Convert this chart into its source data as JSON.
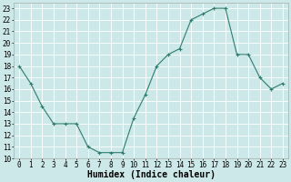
{
  "x": [
    0,
    1,
    2,
    3,
    4,
    5,
    6,
    7,
    8,
    9,
    10,
    11,
    12,
    13,
    14,
    15,
    16,
    17,
    18,
    19,
    20,
    21,
    22,
    23
  ],
  "y": [
    18.0,
    16.5,
    14.5,
    13.0,
    13.0,
    13.0,
    11.0,
    10.5,
    10.5,
    10.5,
    13.5,
    15.5,
    18.0,
    19.0,
    19.5,
    22.0,
    22.5,
    23.0,
    23.0,
    19.0,
    19.0,
    17.0,
    16.0,
    16.5
  ],
  "xlabel": "Humidex (Indice chaleur)",
  "xlim": [
    -0.5,
    23.5
  ],
  "ylim": [
    10,
    23.5
  ],
  "yticks": [
    10,
    11,
    12,
    13,
    14,
    15,
    16,
    17,
    18,
    19,
    20,
    21,
    22,
    23
  ],
  "xticks": [
    0,
    1,
    2,
    3,
    4,
    5,
    6,
    7,
    8,
    9,
    10,
    11,
    12,
    13,
    14,
    15,
    16,
    17,
    18,
    19,
    20,
    21,
    22,
    23
  ],
  "line_color": "#2e7d6e",
  "marker": "+",
  "bg_color": "#cce8e8",
  "grid_color": "#ffffff",
  "label_fontsize": 7,
  "tick_fontsize": 5.5
}
